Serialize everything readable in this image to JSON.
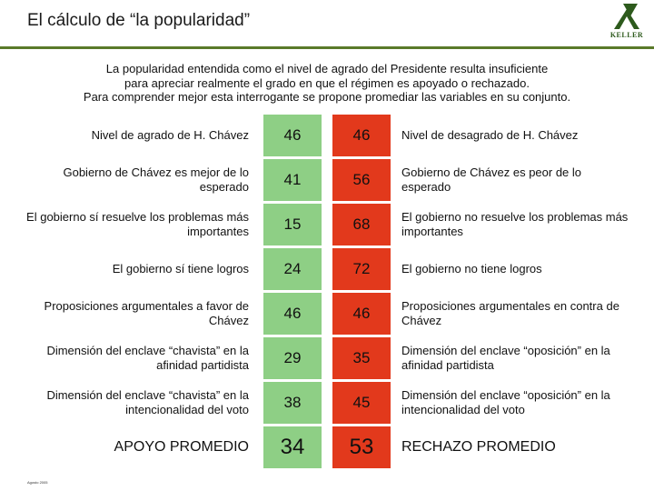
{
  "title": "El cálculo de “la popularidad”",
  "logo": {
    "brand": "KELLER",
    "icon": "keller-logo"
  },
  "intro": [
    "La popularidad entendida como el nivel de agrado del Presidente resulta insuficiente",
    "para apreciar realmente el grado en que el régimen es apoyado o rechazado.",
    "Para comprender mejor esta interrogante se propone promediar las variables en su conjunto."
  ],
  "colors": {
    "approve": "#8ecf85",
    "reject": "#e2391c",
    "rule": "#5a7a2a"
  },
  "rows": [
    {
      "left": "Nivel de agrado de H. Chávez",
      "pro": "46",
      "con": "46",
      "right": "Nivel de desagrado de H. Chávez"
    },
    {
      "left": "Gobierno de Chávez es mejor de lo esperado",
      "pro": "41",
      "con": "56",
      "right": "Gobierno de Chávez es peor de lo esperado"
    },
    {
      "left": "El gobierno sí resuelve los problemas más importantes",
      "pro": "15",
      "con": "68",
      "right": "El gobierno no resuelve los problemas más importantes"
    },
    {
      "left": "El gobierno sí tiene logros",
      "pro": "24",
      "con": "72",
      "right": "El gobierno no tiene logros"
    },
    {
      "left": "Proposiciones argumentales a favor de Chávez",
      "pro": "46",
      "con": "46",
      "right": "Proposiciones argumentales en contra de Chávez"
    },
    {
      "left": "Dimensión del enclave “chavista” en la afinidad partidista",
      "pro": "29",
      "con": "35",
      "right": "Dimensión del enclave “oposición” en la afinidad partidista"
    },
    {
      "left": "Dimensión del enclave “chavista” en la intencionalidad del voto",
      "pro": "38",
      "con": "45",
      "right": "Dimensión del enclave “oposición” en la intencionalidad del voto"
    }
  ],
  "summary": {
    "left": "APOYO PROMEDIO",
    "pro": "34",
    "con": "53",
    "right": "RECHAZO PROMEDIO"
  },
  "footer": "Agosto 2005"
}
